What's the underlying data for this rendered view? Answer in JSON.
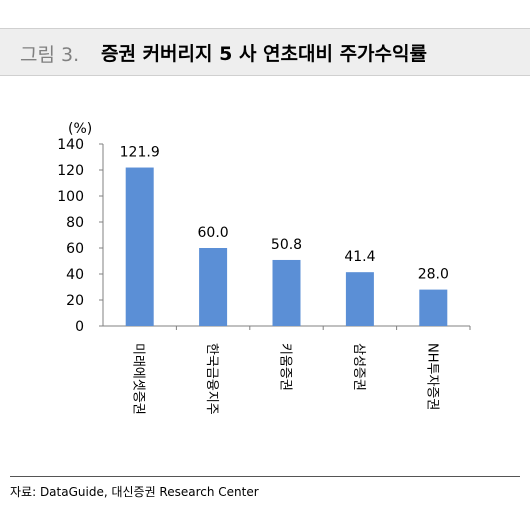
{
  "figure": {
    "number": "그림 3.",
    "title": "증권 커버리지 5 사 연초대비 주가수익률"
  },
  "source": "자료: DataGuide, 대신증권 Research Center",
  "colors": {
    "bar": "#5b8fd6",
    "axis": "#808080"
  },
  "chart_data": {
    "type": "bar",
    "ylabel": "(%)",
    "xlabel": "",
    "categories": [
      "미래에셋증권",
      "한국금융지주",
      "키움증권",
      "삼성증권",
      "NH투자증권"
    ],
    "values": [
      121.9,
      60.0,
      50.8,
      41.4,
      28.0
    ],
    "data_labels": [
      "121.9",
      "60.0",
      "50.8",
      "41.4",
      "28.0"
    ],
    "ylim": [
      0,
      140
    ],
    "yticks": [
      "0",
      "20",
      "40",
      "60",
      "80",
      "100",
      "120",
      "140"
    ],
    "grid": false,
    "legend": "none"
  }
}
